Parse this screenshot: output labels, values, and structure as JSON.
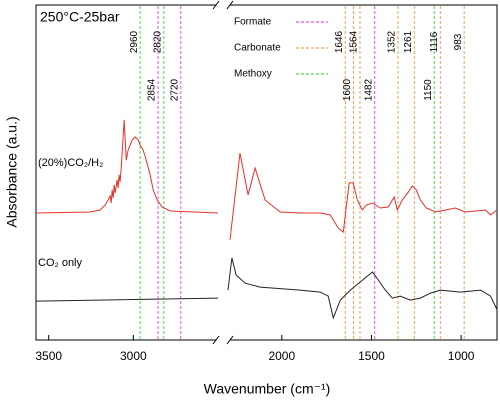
{
  "chart_data": {
    "type": "line",
    "title": "250°C-25bar",
    "xlabel": "Wavenumber (cm⁻¹)",
    "ylabel": "Absorbance (a.u.)",
    "xlim": [
      3575,
      800
    ],
    "xbreak": [
      2500,
      2300
    ],
    "ylim": [
      0,
      10
    ],
    "xticks": [
      3500,
      3000,
      2000,
      1500,
      1000
    ],
    "band_legend": [
      {
        "name": "Formate",
        "color": "#e050e0"
      },
      {
        "name": "Carbonate",
        "color": "#f0a050"
      },
      {
        "name": "Methoxy",
        "color": "#50d850"
      }
    ],
    "bands": [
      {
        "x": 2960,
        "color": "#50d850"
      },
      {
        "x": 2854,
        "color": "#e050e0"
      },
      {
        "x": 2820,
        "color": "#50d850"
      },
      {
        "x": 2720,
        "color": "#e050e0"
      },
      {
        "x": 1646,
        "color": "#f0a050"
      },
      {
        "x": 1600,
        "color": "#f0a050"
      },
      {
        "x": 1564,
        "color": "#f0a050"
      },
      {
        "x": 1482,
        "color": "#e050e0"
      },
      {
        "x": 1352,
        "color": "#f0a050"
      },
      {
        "x": 1261,
        "color": "#f0a050"
      },
      {
        "x": 1150,
        "color": "#50d850"
      },
      {
        "x": 1116,
        "color": "#f0a050"
      },
      {
        "x": 983,
        "color": "#f0a050"
      }
    ],
    "series": [
      {
        "name": "(20%)CO₂/H₂",
        "color": "#e8302a",
        "x": [
          3575,
          3255,
          3196,
          3167,
          3149,
          3137,
          3131,
          3125,
          3119,
          3113,
          3107,
          3096,
          3090,
          3084,
          3078,
          3072,
          3054,
          3042,
          3031,
          3019,
          3007,
          2989,
          2971,
          2960,
          2942,
          2924,
          2901,
          2883,
          2859,
          2830,
          2782,
          2500,
          null,
          2289,
          2233,
          2188,
          2149,
          2093,
          2009,
          1898,
          1786,
          1730,
          1685,
          1657,
          1646,
          1624,
          1602,
          1579,
          1551,
          1529,
          1495,
          1451,
          1406,
          1373,
          1356,
          1328,
          1294,
          1272,
          1250,
          1227,
          1194,
          1143,
          1088,
          1032,
          976,
          920,
          864,
          836,
          800
        ],
        "values": [
          3.79,
          3.82,
          3.88,
          4.03,
          4.18,
          4.3,
          4.09,
          4.48,
          4.24,
          4.63,
          4.39,
          4.78,
          4.54,
          4.93,
          4.72,
          5.13,
          6.57,
          5.37,
          5.67,
          5.82,
          5.97,
          6.06,
          5.97,
          5.82,
          5.67,
          5.37,
          4.93,
          4.48,
          4.18,
          3.97,
          3.85,
          3.79,
          null,
          2.99,
          5.58,
          4.33,
          5.13,
          4.18,
          3.82,
          3.79,
          3.79,
          3.73,
          3.34,
          3.22,
          3.73,
          4.69,
          4.69,
          4.18,
          3.88,
          4.03,
          4.09,
          3.94,
          3.97,
          4.27,
          3.88,
          4.18,
          4.42,
          4.6,
          4.48,
          4.18,
          3.94,
          3.82,
          3.88,
          3.94,
          3.82,
          3.85,
          3.88,
          3.73,
          3.88
        ]
      },
      {
        "name": "CO₂ only",
        "color": "#222222",
        "x": [
          3575,
          2500,
          null,
          2300,
          2278,
          2255,
          2205,
          2121,
          1898,
          1786,
          1741,
          1713,
          1674,
          1618,
          1563,
          1495,
          1462,
          1423,
          1384,
          1339,
          1283,
          1227,
          1171,
          1116,
          1004,
          892,
          836,
          800
        ],
        "values": [
          1.16,
          1.25,
          null,
          1.49,
          2.45,
          1.94,
          1.7,
          1.58,
          1.49,
          1.43,
          1.31,
          0.66,
          1.19,
          1.49,
          1.73,
          2.03,
          1.79,
          1.49,
          1.25,
          1.31,
          1.19,
          1.25,
          1.4,
          1.49,
          1.43,
          1.49,
          1.31,
          0.91
        ]
      }
    ]
  }
}
